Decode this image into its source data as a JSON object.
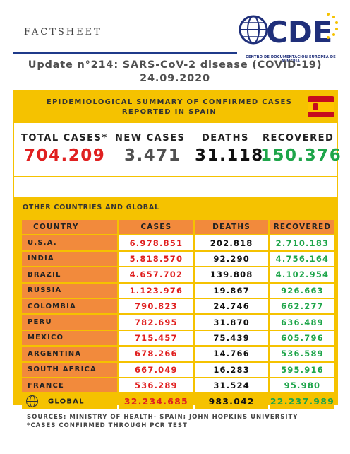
{
  "header": {
    "factsheet_label": "FACTSHEET",
    "logo_text": "CDE",
    "logo_subtitle": "CENTRO DE DOCUMENTACIÓN EUROPEA DE ALMERÍA",
    "title": "Update n°214: SARS-CoV-2 disease (COVID-19) 24.09.2020"
  },
  "summary": {
    "heading": "EPIDEMIOLOGICAL SUMMARY OF CONFIRMED CASES REPORTED IN SPAIN",
    "flag_icon": "spain-flag-icon",
    "total_cases_label": "TOTAL CASES*",
    "total_cases_value": "704.209",
    "new_cases_label": "NEW CASES",
    "new_cases_value": "3.471",
    "deaths_label": "DEATHS",
    "deaths_value": "31.118",
    "recovered_label": "RECOVERED",
    "recovered_value": "150.376"
  },
  "other": {
    "heading": "OTHER COUNTRIES AND GLOBAL",
    "columns": [
      "COUNTRY",
      "CASES",
      "DEATHS",
      "RECOVERED"
    ],
    "rows": [
      {
        "country": "U.S.A.",
        "cases": "6.978.851",
        "deaths": "202.818",
        "recovered": "2.710.183"
      },
      {
        "country": "INDIA",
        "cases": "5.818.570",
        "deaths": "92.290",
        "recovered": "4.756.164"
      },
      {
        "country": "BRAZIL",
        "cases": "4.657.702",
        "deaths": "139.808",
        "recovered": "4.102.954"
      },
      {
        "country": "RUSSIA",
        "cases": "1.123.976",
        "deaths": "19.867",
        "recovered": "926.663"
      },
      {
        "country": "COLOMBIA",
        "cases": "790.823",
        "deaths": "24.746",
        "recovered": "662.277"
      },
      {
        "country": "PERU",
        "cases": "782.695",
        "deaths": "31.870",
        "recovered": "636.489"
      },
      {
        "country": "MEXICO",
        "cases": "715.457",
        "deaths": "75.439",
        "recovered": "605.796"
      },
      {
        "country": "ARGENTINA",
        "cases": "678.266",
        "deaths": "14.766",
        "recovered": "536.589"
      },
      {
        "country": "SOUTH AFRICA",
        "cases": "667.049",
        "deaths": "16.283",
        "recovered": "595.916"
      },
      {
        "country": "FRANCE",
        "cases": "536.289",
        "deaths": "31.524",
        "recovered": "95.980"
      }
    ],
    "global": {
      "label": "GLOBAL",
      "cases": "32.234.685",
      "deaths": "983.042",
      "recovered": "22.237.989",
      "icon": "globe-icon"
    }
  },
  "footer": {
    "sources": "SOURCES: MINISTRY OF HEALTH- SPAIN; JOHN HOPKINS UNIVERSITY",
    "note": "*CASES CONFIRMED THROUGH PCR TEST"
  },
  "colors": {
    "yellow": "#f5c200",
    "orange": "#f28a3c",
    "red": "#e02020",
    "green": "#1ea54a",
    "navy": "#1f3a8a"
  }
}
